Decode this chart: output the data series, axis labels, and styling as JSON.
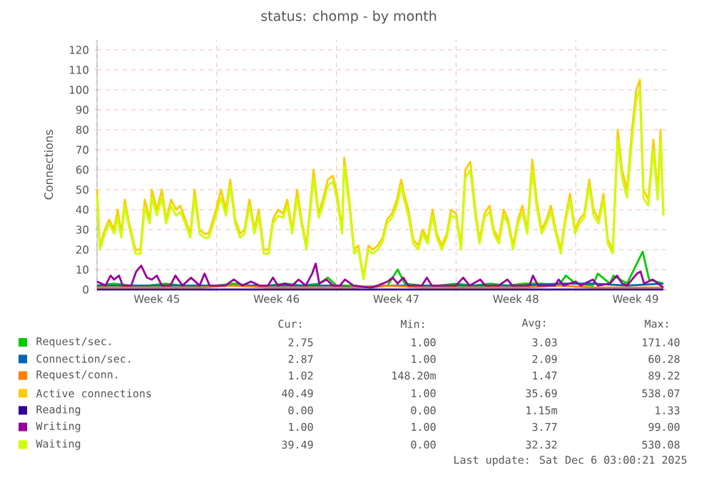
{
  "chart_data": {
    "type": "line",
    "title": "status: chomp - by month",
    "ylabel": "Connections",
    "xlim": [
      "2025-11-03T00:00",
      "2025-12-06T07:00"
    ],
    "ylim": [
      0,
      125
    ],
    "xticks": [
      {
        "value": "2025-11-03T00:00",
        "label": null
      },
      {
        "value": "2025-11-06T12:00",
        "label": "Week 45"
      },
      {
        "value": "2025-11-10T00:00",
        "label": null
      },
      {
        "value": "2025-11-13T12:00",
        "label": "Week 46"
      },
      {
        "value": "2025-11-17T00:00",
        "label": null
      },
      {
        "value": "2025-11-20T12:00",
        "label": "Week 47"
      },
      {
        "value": "2025-11-24T00:00",
        "label": null
      },
      {
        "value": "2025-11-27T12:00",
        "label": "Week 48"
      },
      {
        "value": "2025-12-01T00:00",
        "label": null
      },
      {
        "value": "2025-12-04T12:00",
        "label": "Week 49"
      }
    ],
    "yticks": [
      0,
      10,
      20,
      30,
      40,
      50,
      60,
      70,
      80,
      90,
      100,
      110,
      120
    ],
    "grid": true,
    "legend": "bottom",
    "x": [
      "2025-11-03T00:00",
      "2025-11-03T04:00",
      "2025-11-03T11:00",
      "2025-11-03T17:00",
      "2025-11-04T00:00",
      "2025-11-04T05:00",
      "2025-11-04T10:00",
      "2025-11-04T15:00",
      "2025-11-04T20:00",
      "2025-11-05T06:00",
      "2025-11-05T13:00",
      "2025-11-05T19:00",
      "2025-11-06T02:00",
      "2025-11-06T05:00",
      "2025-11-06T12:00",
      "2025-11-06T19:00",
      "2025-11-07T01:00",
      "2025-11-07T08:00",
      "2025-11-07T15:00",
      "2025-11-07T21:00",
      "2025-11-08T04:00",
      "2025-11-08T11:00",
      "2025-11-08T17:00",
      "2025-11-09T00:00",
      "2025-11-09T07:00",
      "2025-11-09T13:00",
      "2025-11-09T23:00",
      "2025-11-10T06:00",
      "2025-11-10T13:00",
      "2025-11-10T19:00",
      "2025-11-11T02:00",
      "2025-11-11T09:00",
      "2025-11-11T15:00",
      "2025-11-11T22:00",
      "2025-11-12T05:00",
      "2025-11-12T11:00",
      "2025-11-12T18:00",
      "2025-11-13T01:00",
      "2025-11-13T07:00",
      "2025-11-13T14:00",
      "2025-11-13T21:00",
      "2025-11-14T03:00",
      "2025-11-14T10:00",
      "2025-11-14T17:00",
      "2025-11-14T23:00",
      "2025-11-15T06:00",
      "2025-11-15T16:00",
      "2025-11-15T23:00",
      "2025-11-16T05:00",
      "2025-11-16T12:00",
      "2025-11-16T19:00",
      "2025-11-17T01:00",
      "2025-11-17T08:00",
      "2025-11-17T11:00",
      "2025-11-17T18:00",
      "2025-11-18T01:00",
      "2025-11-18T07:00",
      "2025-11-18T14:00",
      "2025-11-18T21:00",
      "2025-11-19T03:00",
      "2025-11-19T10:00",
      "2025-11-19T17:00",
      "2025-11-19T23:00",
      "2025-11-20T06:00",
      "2025-11-20T13:00",
      "2025-11-20T19:00",
      "2025-11-20T23:00",
      "2025-11-21T05:00",
      "2025-11-21T12:00",
      "2025-11-21T19:00",
      "2025-11-22T01:00",
      "2025-11-22T08:00",
      "2025-11-22T15:00",
      "2025-11-22T21:00",
      "2025-11-23T04:00",
      "2025-11-23T11:00",
      "2025-11-23T17:00",
      "2025-11-24T00:00",
      "2025-11-24T07:00",
      "2025-11-24T13:00",
      "2025-11-24T20:00",
      "2025-11-25T03:00",
      "2025-11-25T09:00",
      "2025-11-25T16:00",
      "2025-11-25T23:00",
      "2025-11-26T05:00",
      "2025-11-26T12:00",
      "2025-11-26T19:00",
      "2025-11-27T01:00",
      "2025-11-27T08:00",
      "2025-11-27T15:00",
      "2025-11-27T21:00",
      "2025-11-28T04:00",
      "2025-11-28T11:00",
      "2025-11-28T17:00",
      "2025-11-29T00:00",
      "2025-11-29T07:00",
      "2025-11-29T13:00",
      "2025-11-29T20:00",
      "2025-11-30T03:00",
      "2025-11-30T09:00",
      "2025-11-30T16:00",
      "2025-11-30T23:00",
      "2025-12-01T05:00",
      "2025-12-01T12:00",
      "2025-12-01T19:00",
      "2025-12-02T01:00",
      "2025-12-02T08:00",
      "2025-12-02T15:00",
      "2025-12-02T21:00",
      "2025-12-03T04:00",
      "2025-12-03T11:00",
      "2025-12-03T17:00",
      "2025-12-04T00:00",
      "2025-12-04T07:00",
      "2025-12-04T13:00",
      "2025-12-04T18:00",
      "2025-12-04T23:00",
      "2025-12-05T06:00",
      "2025-12-05T13:00",
      "2025-12-05T19:00",
      "2025-12-05T23:00",
      "2025-12-06T03:00"
    ],
    "series": [
      {
        "name": "Request/sec.",
        "color": "#00cc00",
        "x": [
          "2025-11-03T00:00",
          "2025-11-04T00:00",
          "2025-11-05T00:00",
          "2025-11-06T00:00",
          "2025-11-07T00:00",
          "2025-11-08T00:00",
          "2025-11-09T00:00",
          "2025-11-10T00:00",
          "2025-11-11T00:00",
          "2025-11-12T00:00",
          "2025-11-13T00:00",
          "2025-11-14T00:00",
          "2025-11-15T00:00",
          "2025-11-16T00:00",
          "2025-11-16T12:00",
          "2025-11-17T00:00",
          "2025-11-18T00:00",
          "2025-11-19T00:00",
          "2025-11-20T00:00",
          "2025-11-20T14:00",
          "2025-11-21T00:00",
          "2025-11-22T00:00",
          "2025-11-23T00:00",
          "2025-11-24T00:00",
          "2025-11-25T00:00",
          "2025-11-26T00:00",
          "2025-11-27T00:00",
          "2025-11-28T00:00",
          "2025-11-29T00:00",
          "2025-11-30T00:00",
          "2025-11-30T10:00",
          "2025-12-01T00:00",
          "2025-12-02T00:00",
          "2025-12-02T07:00",
          "2025-12-03T00:00",
          "2025-12-03T05:00",
          "2025-12-04T00:00",
          "2025-12-04T22:00",
          "2025-12-05T07:00",
          "2025-12-06T03:00"
        ],
        "values": [
          2,
          3,
          2,
          2,
          3,
          2,
          2,
          2,
          3,
          2,
          2,
          3,
          2,
          3,
          6,
          2,
          2,
          1,
          2,
          10,
          3,
          2,
          2,
          3,
          2,
          3,
          2,
          3,
          3,
          2,
          7,
          3,
          2,
          8,
          3,
          7,
          3,
          19,
          5,
          3
        ]
      },
      {
        "name": "Connection/sec.",
        "color": "#0066b3",
        "x": [
          "2025-11-03T00:00",
          "2025-11-05T00:00",
          "2025-11-07T00:00",
          "2025-11-09T00:00",
          "2025-11-11T00:00",
          "2025-11-13T00:00",
          "2025-11-15T00:00",
          "2025-11-17T00:00",
          "2025-11-18T00:00",
          "2025-11-20T00:00",
          "2025-11-22T00:00",
          "2025-11-24T00:00",
          "2025-11-26T00:00",
          "2025-11-28T00:00",
          "2025-11-30T00:00",
          "2025-12-02T00:00",
          "2025-12-04T00:00",
          "2025-12-06T03:00"
        ],
        "values": [
          2,
          2,
          2,
          2,
          2,
          2,
          2,
          2,
          1,
          2,
          2,
          2,
          2,
          2,
          3,
          3,
          2,
          3
        ]
      },
      {
        "name": "Request/conn.",
        "color": "#ff8000",
        "x": [
          "2025-11-03T00:00",
          "2025-11-05T00:00",
          "2025-11-07T00:00",
          "2025-11-09T00:00",
          "2025-11-11T00:00",
          "2025-11-13T00:00",
          "2025-11-15T00:00",
          "2025-11-17T00:00",
          "2025-11-18T00:00",
          "2025-11-20T00:00",
          "2025-11-22T00:00",
          "2025-11-24T00:00",
          "2025-11-26T00:00",
          "2025-11-28T00:00",
          "2025-11-30T00:00",
          "2025-12-02T00:00",
          "2025-12-04T00:00",
          "2025-12-06T03:00"
        ],
        "values": [
          1,
          1,
          1,
          1,
          2,
          1,
          1,
          1,
          1,
          2,
          1,
          1,
          1,
          1,
          2,
          1,
          1,
          1
        ]
      },
      {
        "name": "Active connections",
        "color": "#ffcc00",
        "values": [
          50,
          22,
          30,
          35,
          30,
          40,
          28,
          45,
          35,
          20,
          20,
          45,
          35,
          50,
          40,
          50,
          35,
          45,
          40,
          42,
          35,
          28,
          50,
          30,
          28,
          28,
          40,
          50,
          40,
          55,
          35,
          28,
          30,
          45,
          30,
          40,
          20,
          20,
          35,
          40,
          38,
          45,
          30,
          50,
          35,
          22,
          60,
          38,
          45,
          55,
          57,
          48,
          30,
          66,
          45,
          20,
          22,
          6,
          22,
          20,
          22,
          26,
          35,
          38,
          45,
          55,
          48,
          40,
          25,
          22,
          30,
          25,
          40,
          28,
          22,
          28,
          40,
          38,
          22,
          60,
          64,
          40,
          25,
          38,
          42,
          30,
          25,
          40,
          35,
          22,
          35,
          42,
          30,
          65,
          45,
          30,
          35,
          42,
          30,
          20,
          35,
          48,
          30,
          35,
          38,
          55,
          40,
          35,
          48,
          25,
          20,
          80,
          60,
          50,
          80,
          100,
          105,
          50,
          45,
          75,
          48,
          80,
          38
        ]
      },
      {
        "name": "Reading",
        "color": "#330099",
        "x": [
          "2025-11-03T00:00",
          "2025-12-06T03:00"
        ],
        "values": [
          0,
          0
        ]
      },
      {
        "name": "Writing",
        "color": "#990099",
        "x": [
          "2025-11-03T00:00",
          "2025-11-03T12:00",
          "2025-11-03T19:00",
          "2025-11-04T00:00",
          "2025-11-04T07:00",
          "2025-11-04T12:00",
          "2025-11-05T00:00",
          "2025-11-05T07:00",
          "2025-11-05T14:00",
          "2025-11-05T22:00",
          "2025-11-06T05:00",
          "2025-11-06T12:00",
          "2025-11-06T19:00",
          "2025-11-07T07:00",
          "2025-11-07T14:00",
          "2025-11-08T00:00",
          "2025-11-08T12:00",
          "2025-11-09T00:00",
          "2025-11-09T07:00",
          "2025-11-09T14:00",
          "2025-11-10T12:00",
          "2025-11-11T00:00",
          "2025-11-11T12:00",
          "2025-11-12T00:00",
          "2025-11-12T12:00",
          "2025-11-13T00:00",
          "2025-11-13T07:00",
          "2025-11-13T14:00",
          "2025-11-14T00:00",
          "2025-11-14T10:00",
          "2025-11-14T19:00",
          "2025-11-15T05:00",
          "2025-11-15T14:00",
          "2025-11-15T19:00",
          "2025-11-16T00:00",
          "2025-11-16T10:00",
          "2025-11-16T19:00",
          "2025-11-17T05:00",
          "2025-11-17T12:00",
          "2025-11-18T00:00",
          "2025-11-19T00:00",
          "2025-11-19T10:00",
          "2025-11-20T00:00",
          "2025-11-20T07:00",
          "2025-11-20T14:00",
          "2025-11-20T22:00",
          "2025-11-21T05:00",
          "2025-11-22T00:00",
          "2025-11-22T07:00",
          "2025-11-22T14:00",
          "2025-11-23T12:00",
          "2025-11-24T00:00",
          "2025-11-24T10:00",
          "2025-11-24T19:00",
          "2025-11-25T10:00",
          "2025-11-25T17:00",
          "2025-11-26T12:00",
          "2025-11-27T00:00",
          "2025-11-27T07:00",
          "2025-11-28T07:00",
          "2025-11-28T12:00",
          "2025-11-28T19:00",
          "2025-11-29T19:00",
          "2025-11-30T00:00",
          "2025-11-30T07:00",
          "2025-12-01T00:00",
          "2025-12-01T07:00",
          "2025-12-02T00:00",
          "2025-12-02T07:00",
          "2025-12-03T00:00",
          "2025-12-03T10:00",
          "2025-12-03T17:00",
          "2025-12-04T00:00",
          "2025-12-04T14:00",
          "2025-12-04T19:00",
          "2025-12-05T00:00",
          "2025-12-05T12:00",
          "2025-12-06T03:00"
        ],
        "values": [
          4,
          2,
          7,
          5,
          7,
          2,
          2,
          9,
          12,
          6,
          5,
          7,
          2,
          2,
          7,
          2,
          6,
          2,
          8,
          2,
          2,
          5,
          2,
          4,
          2,
          2,
          6,
          2,
          3,
          2,
          5,
          2,
          8,
          13,
          3,
          5,
          2,
          2,
          5,
          2,
          1,
          2,
          4,
          6,
          3,
          6,
          2,
          2,
          6,
          2,
          2,
          2,
          6,
          2,
          5,
          2,
          2,
          5,
          2,
          2,
          7,
          2,
          2,
          5,
          2,
          4,
          2,
          5,
          2,
          3,
          7,
          3,
          2,
          8,
          9,
          3,
          5,
          1
        ]
      },
      {
        "name": "Waiting",
        "color": "#ccff00",
        "values": [
          47,
          20,
          28,
          33,
          28,
          36,
          26,
          42,
          33,
          18,
          18,
          41,
          33,
          46,
          37,
          46,
          33,
          42,
          37,
          39,
          33,
          26,
          46,
          28,
          26,
          26,
          37,
          46,
          37,
          52,
          33,
          26,
          28,
          42,
          28,
          37,
          18,
          18,
          33,
          37,
          36,
          42,
          28,
          46,
          33,
          20,
          56,
          36,
          42,
          52,
          54,
          45,
          28,
          62,
          42,
          18,
          20,
          5,
          20,
          18,
          20,
          24,
          33,
          36,
          42,
          52,
          45,
          37,
          23,
          20,
          28,
          23,
          37,
          26,
          20,
          26,
          37,
          36,
          20,
          56,
          60,
          37,
          23,
          36,
          39,
          28,
          23,
          37,
          33,
          20,
          33,
          39,
          28,
          60,
          42,
          28,
          33,
          39,
          28,
          18,
          33,
          45,
          28,
          33,
          36,
          52,
          37,
          33,
          45,
          23,
          18,
          75,
          56,
          46,
          75,
          95,
          100,
          46,
          42,
          70,
          45,
          75,
          37
        ]
      }
    ],
    "annotations": [
      "Cur:",
      "Min:",
      "Avg:",
      "Max:",
      "2.75",
      "1.00",
      "3.03",
      "171.40",
      "2.87",
      "1.00",
      "2.09",
      "60.28",
      "1.02",
      "148.20m",
      "1.47",
      "89.22",
      "40.49",
      "1.00",
      "35.69",
      "538.07",
      "0.00",
      "0.00",
      "1.15m",
      "1.33",
      "1.00",
      "1.00",
      "3.77",
      "99.00",
      "39.49",
      "0.00",
      "32.32",
      "530.08",
      "Last update: Sat Dec  6 03:00:21 2025"
    ]
  }
}
